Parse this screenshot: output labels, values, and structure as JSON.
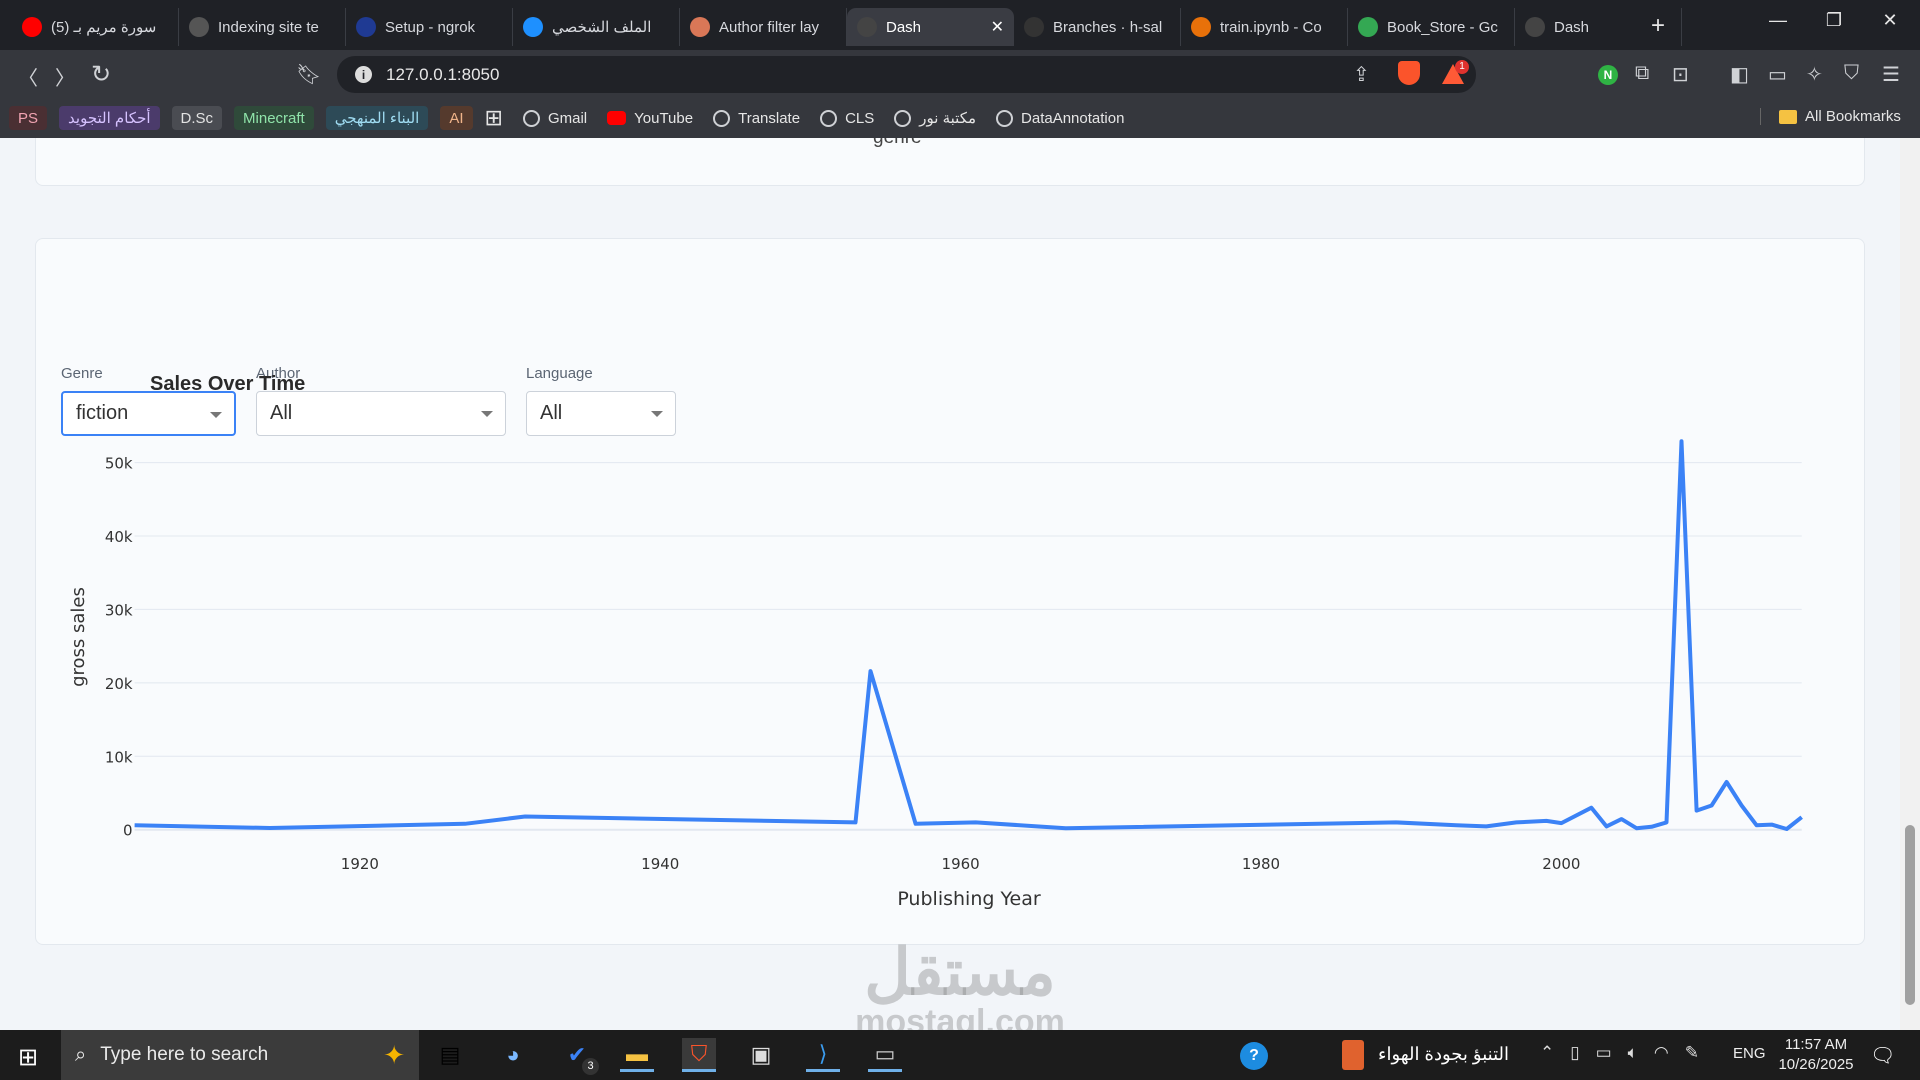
{
  "browser": {
    "tabs": [
      {
        "title": "(5) سورة مريم بـ",
        "icon": "youtube-icon",
        "color": "#ff0000"
      },
      {
        "title": "Indexing site te",
        "icon": "openai-icon",
        "color": "#555"
      },
      {
        "title": "Setup - ngrok",
        "icon": "ngrok-icon",
        "color": "#1f3a93"
      },
      {
        "title": "الملف الشخصي",
        "icon": "circle-icon",
        "color": "#1e90ff"
      },
      {
        "title": "Author filter lay",
        "icon": "claude-icon",
        "color": "#d97757"
      },
      {
        "title": "Dash",
        "icon": "dash-icon",
        "color": "#444",
        "active": true
      },
      {
        "title": "Branches · h-sal",
        "icon": "github-icon",
        "color": "#333"
      },
      {
        "title": "train.ipynb - Co",
        "icon": "colab-icon",
        "color": "#e8710a"
      },
      {
        "title": "Book_Store - Gc",
        "icon": "drive-icon",
        "color": "#34a853"
      },
      {
        "title": "Dash",
        "icon": "dash-icon",
        "color": "#444"
      }
    ],
    "new_tab": "+",
    "url": "127.0.0.1:8050",
    "notification_count": "1",
    "bookmarks_chips": [
      {
        "label": "PS",
        "bg": "#4a2f33",
        "fg": "#f0a3b1"
      },
      {
        "label": "أحكام التجويد",
        "bg": "#4b3b6b",
        "fg": "#d6c2ff"
      },
      {
        "label": "D.Sc",
        "bg": "#4a4c52",
        "fg": "#e2e2e2"
      },
      {
        "label": "Minecraft",
        "bg": "#2f4a3a",
        "fg": "#8fe3a9"
      },
      {
        "label": "البناء المنهجي",
        "bg": "#2d4a57",
        "fg": "#9fdcf2"
      },
      {
        "label": "AI",
        "bg": "#553a2d",
        "fg": "#f0b48a"
      }
    ],
    "bookmarks": [
      "Gmail",
      "YouTube",
      "Translate",
      "CLS",
      "مكتبة نور",
      "DataAnnotation"
    ],
    "all_bookmarks": "All Bookmarks"
  },
  "top_card": {
    "partial_label": "genre"
  },
  "filters": {
    "genre": {
      "label": "Genre",
      "value": "fiction"
    },
    "author": {
      "label": "Author",
      "value": "All"
    },
    "language": {
      "label": "Language",
      "value": "All"
    }
  },
  "chart_data": {
    "type": "line",
    "title": "Sales Over Time",
    "xlabel": "Publishing Year",
    "ylabel": "gross sales",
    "color": "#3b82f6",
    "grid": true,
    "x": [
      1905,
      1914,
      1927,
      1931,
      1953,
      1954,
      1957,
      1961,
      1967,
      1989,
      1993,
      1995,
      1997,
      1999,
      2000,
      2002,
      2003,
      2004,
      2005,
      2006,
      2007,
      2008,
      2009,
      2010,
      2011,
      2012,
      2013,
      2014,
      2015,
      2016
    ],
    "y": [
      600,
      230,
      800,
      1800,
      1000,
      21600,
      800,
      1000,
      200,
      1000,
      600,
      450,
      1000,
      1200,
      900,
      3000,
      450,
      1450,
      200,
      400,
      1000,
      52900,
      2600,
      3300,
      6500,
      3300,
      600,
      700,
      100,
      1700
    ],
    "xlim": [
      1905,
      2016
    ],
    "ylim": [
      -2900,
      55800
    ],
    "xticks": [
      1920,
      1940,
      1960,
      1980,
      2000
    ],
    "yticks": [
      0,
      10000,
      20000,
      30000,
      40000,
      50000
    ],
    "ytick_labels": [
      "0",
      "10k",
      "20k",
      "30k",
      "40k",
      "50k"
    ]
  },
  "watermark": {
    "arabic": "مستقل",
    "latin": "mostaql.com"
  },
  "taskbar": {
    "search_placeholder": "Type here to search",
    "todo_badge": "3",
    "weather_text": "التنبؤ بجودة الهواء",
    "language": "ENG",
    "time": "11:57 AM",
    "date": "10/26/2025"
  }
}
